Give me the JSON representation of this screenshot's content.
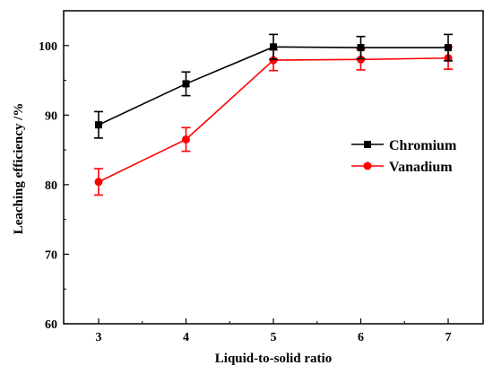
{
  "chart_data": {
    "type": "line",
    "x": [
      3,
      4,
      5,
      6,
      7
    ],
    "xticks": [
      "3",
      "4",
      "5",
      "6",
      "7"
    ],
    "yticks": [
      "60",
      "70",
      "80",
      "90",
      "100"
    ],
    "xlim": [
      2.6,
      7.4
    ],
    "ylim": [
      60,
      105
    ],
    "xlabel": "Liquid-to-solid ratio",
    "ylabel": "Leaching efficiency /%",
    "legend_position": "right-middle",
    "series": [
      {
        "name": "Chromium",
        "color": "#000000",
        "marker": "square",
        "values": [
          88.6,
          94.5,
          99.8,
          99.7,
          99.7
        ],
        "errors": [
          1.9,
          1.7,
          1.8,
          1.6,
          1.9
        ]
      },
      {
        "name": "Vanadium",
        "color": "#ff0000",
        "marker": "circle",
        "values": [
          80.4,
          86.5,
          97.9,
          98.0,
          98.2
        ],
        "errors": [
          1.9,
          1.7,
          1.5,
          1.5,
          1.6
        ]
      }
    ]
  }
}
